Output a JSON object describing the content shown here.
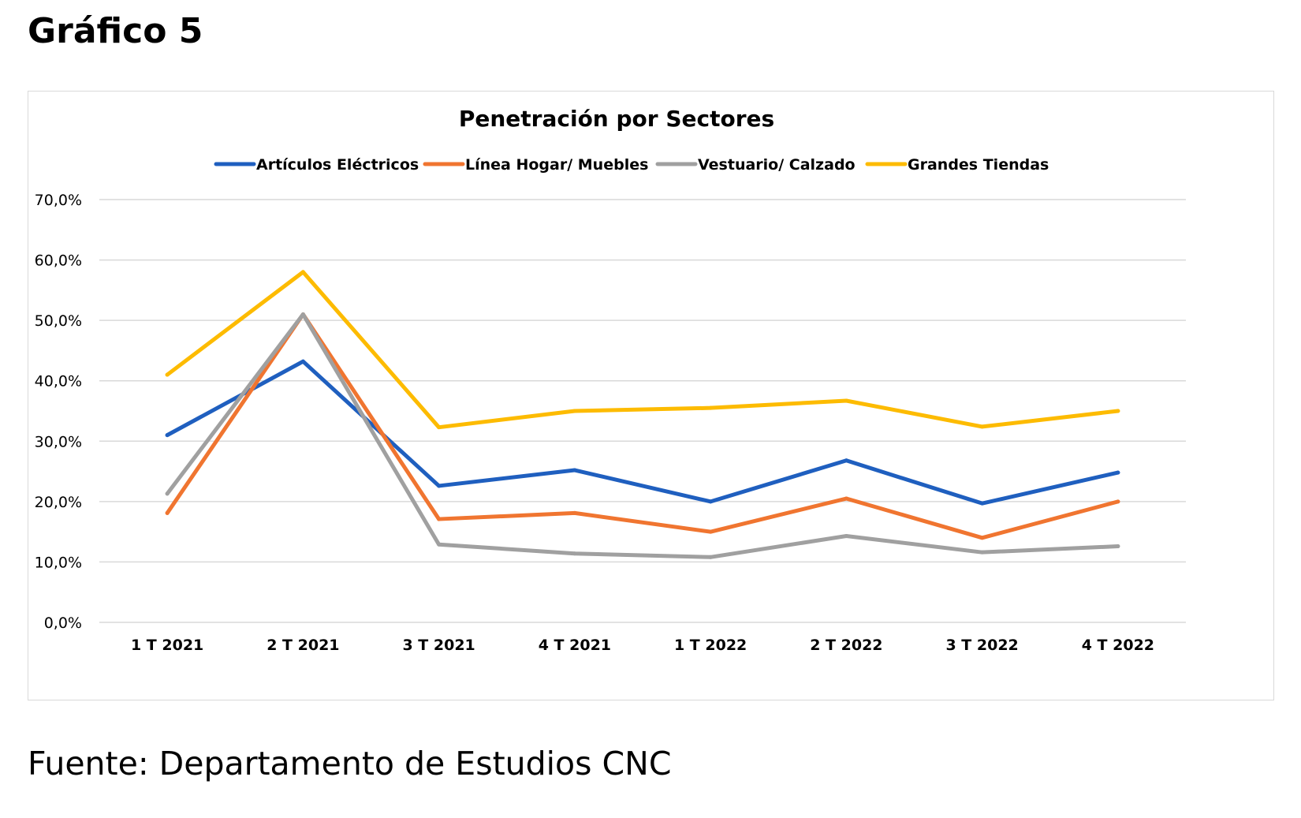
{
  "page": {
    "heading": "Gráfico 5",
    "source": "Fuente: Departamento de Estudios CNC"
  },
  "chart_data": {
    "type": "line",
    "title": "Penetración por Sectores",
    "xlabel": "",
    "ylabel": "",
    "categories": [
      "1 T 2021",
      "2 T 2021",
      "3 T 2021",
      "4 T 2021",
      "1 T 2022",
      "2 T 2022",
      "3 T 2022",
      "4 T 2022"
    ],
    "ylim": [
      0,
      70
    ],
    "yticks": [
      0,
      10,
      20,
      30,
      40,
      50,
      60,
      70
    ],
    "ytick_labels": [
      "0,0%",
      "10,0%",
      "20,0%",
      "30,0%",
      "40,0%",
      "50,0%",
      "60,0%",
      "70,0%"
    ],
    "grid": true,
    "legend_position": "top",
    "series": [
      {
        "name": "Artículos Eléctricos",
        "color": "#1f5fbf",
        "values": [
          31.0,
          43.2,
          22.6,
          25.2,
          20.0,
          26.8,
          19.7,
          24.8
        ]
      },
      {
        "name": "Línea Hogar/ Muebles",
        "color": "#f07530",
        "values": [
          18.1,
          51.0,
          17.1,
          18.1,
          15.0,
          20.5,
          14.0,
          20.0
        ]
      },
      {
        "name": "Vestuario/ Calzado",
        "color": "#a0a0a0",
        "values": [
          21.3,
          51.0,
          12.9,
          11.4,
          10.8,
          14.3,
          11.6,
          12.6
        ]
      },
      {
        "name": "Grandes Tiendas",
        "color": "#fdbb00",
        "values": [
          41.0,
          58.0,
          32.3,
          35.0,
          35.5,
          36.7,
          32.4,
          35.0
        ]
      }
    ]
  }
}
